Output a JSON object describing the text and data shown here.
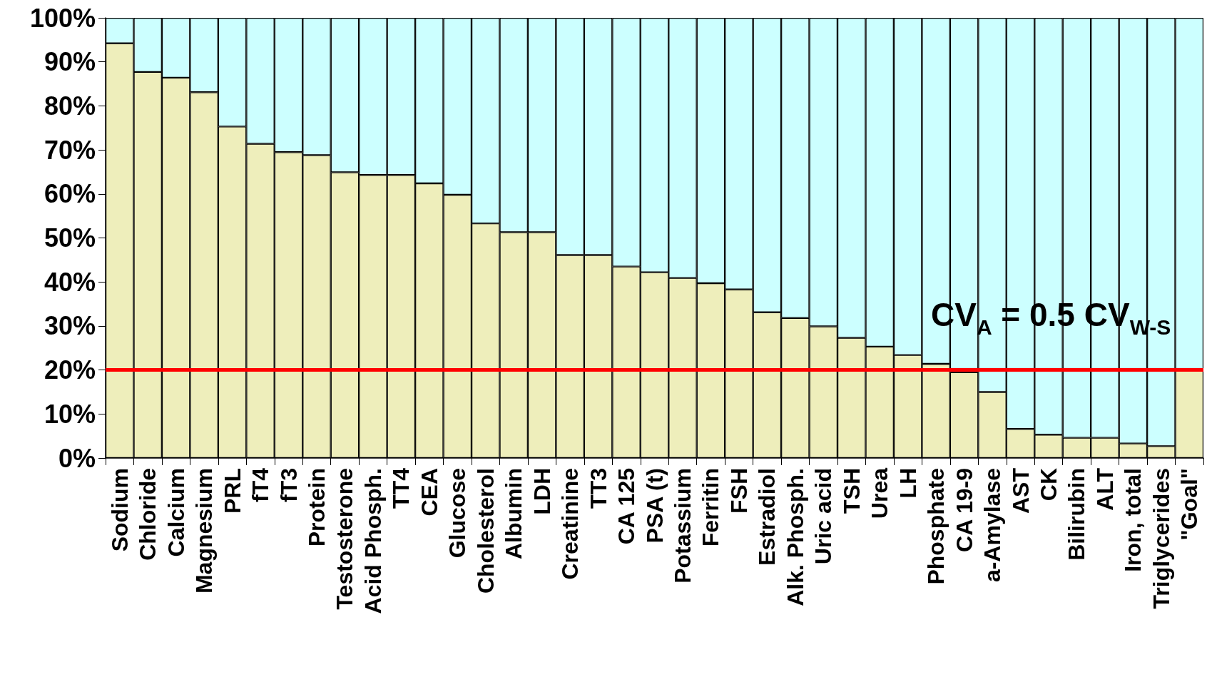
{
  "chart_data": {
    "type": "bar",
    "stacked": true,
    "categories": [
      "Sodium",
      "Chloride",
      "Calcium",
      "Magnesium",
      "PRL",
      "fT4",
      "fT3",
      "Protein",
      "Testosterone",
      "Acid Phosph.",
      "TT4",
      "CEA",
      "Glucose",
      "Cholesterol",
      "Albumin",
      "LDH",
      "Creatinine",
      "TT3",
      "CA 125",
      "PSA (t)",
      "Potassium",
      "Ferritin",
      "FSH",
      "Estradiol",
      "Alk. Phosph.",
      "Uric acid",
      "TSH",
      "Urea",
      "LH",
      "Phosphate",
      "CA 19-9",
      "a-Amylase",
      "AST",
      "CK",
      "Bilirubin",
      "ALT",
      "Iron, total",
      "Triglycerides",
      "\"Goal\""
    ],
    "series": [
      {
        "color": "#eeeebb",
        "values": [
          94.2,
          87.7,
          86.4,
          83.1,
          75.3,
          71.4,
          69.5,
          68.8,
          64.9,
          64.3,
          64.3,
          62.4,
          59.8,
          53.3,
          51.3,
          51.3,
          46.1,
          46.1,
          43.5,
          42.2,
          40.9,
          39.7,
          38.3,
          33.1,
          31.8,
          29.9,
          27.3,
          25.3,
          23.4,
          21.4,
          19.5,
          15.0,
          6.6,
          5.3,
          4.6,
          4.6,
          3.3,
          2.7,
          20
        ]
      },
      {
        "color": "#ccffff",
        "values": [
          5.8,
          12.3,
          13.6,
          16.9,
          24.7,
          28.6,
          30.5,
          31.2,
          35.1,
          35.7,
          35.7,
          37.6,
          40.2,
          46.7,
          48.7,
          48.7,
          53.9,
          53.9,
          56.5,
          57.8,
          59.1,
          60.3,
          61.7,
          66.9,
          68.2,
          70.1,
          72.7,
          74.7,
          76.6,
          78.6,
          80.5,
          85.0,
          93.4,
          94.7,
          95.4,
          95.4,
          96.7,
          97.3,
          80
        ]
      }
    ],
    "ylim": [
      0,
      100
    ],
    "yticks": [
      {
        "value": 0,
        "label": "0%"
      },
      {
        "value": 10,
        "label": "10%"
      },
      {
        "value": 20,
        "label": "20%"
      },
      {
        "value": 30,
        "label": "30%"
      },
      {
        "value": 40,
        "label": "40%"
      },
      {
        "value": 50,
        "label": "50%"
      },
      {
        "value": 60,
        "label": "60%"
      },
      {
        "value": 70,
        "label": "70%"
      },
      {
        "value": 80,
        "label": "80%"
      },
      {
        "value": 90,
        "label": "90%"
      },
      {
        "value": 100,
        "label": "100%"
      }
    ],
    "grid": false,
    "annotations": [
      "CV$_{A}$ = 0.5 CV$_{W-S}$"
    ],
    "ref_lines": [
      {
        "axis": "y",
        "value": 20,
        "color": "#ff0000",
        "line_style": "solid"
      }
    ]
  }
}
